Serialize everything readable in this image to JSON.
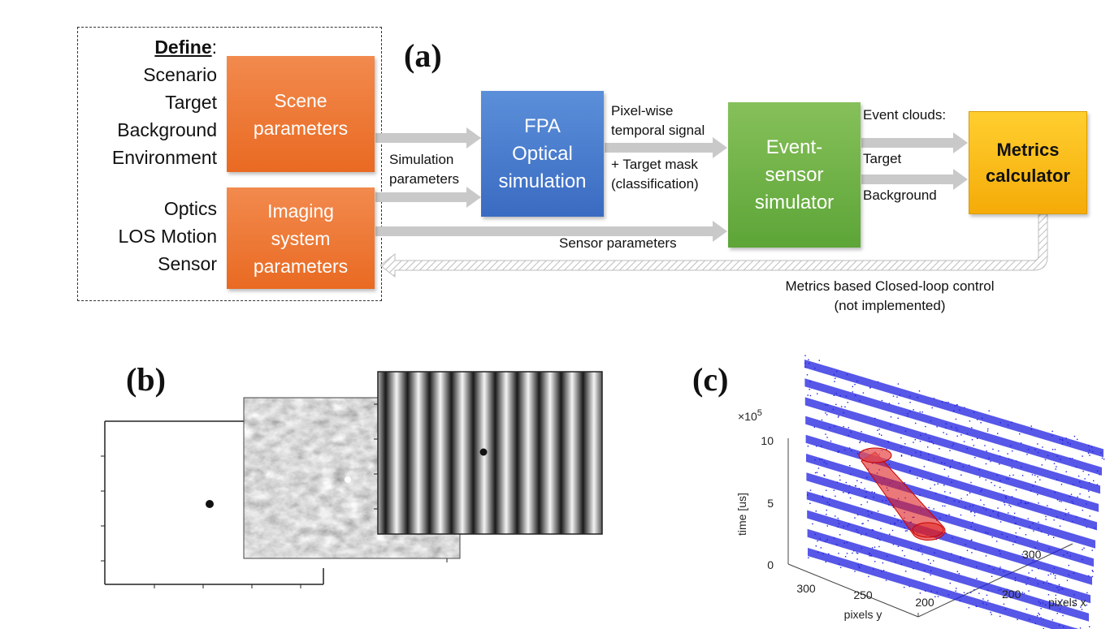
{
  "panel_a": {
    "label": "(a)",
    "define": {
      "title": "Define",
      "colon": ":",
      "scene_items": [
        "Scenario",
        "Target",
        "Background",
        "Environment"
      ],
      "imaging_items": [
        "Optics",
        "LOS Motion",
        "Sensor"
      ]
    },
    "blocks": {
      "scene": "Scene\nparameters",
      "imaging": "Imaging\nsystem\nparameters",
      "fpa": "FPA\nOptical\nsimulation",
      "event_sensor": "Event-\nsensor\nsimulator",
      "metrics": "Metrics\ncalculator"
    },
    "labels": {
      "simulation_parameters": "Simulation\nparameters",
      "pixel_wise": "Pixel-wise\ntemporal signal",
      "target_mask": "+ Target mask\n(classification)",
      "event_clouds": "Event clouds:",
      "target": "Target",
      "background": "Background",
      "sensor_parameters": "Sensor parameters",
      "closed_loop": "Metrics based Closed-loop control\n(not implemented)"
    },
    "colors": {
      "orange": "#ec7430",
      "blue": "#4a7bd0",
      "green": "#70b144",
      "yellow": "#fbbd18",
      "arrow": "#c8c8c8"
    }
  },
  "panel_b": {
    "label": "(b)"
  },
  "panel_c": {
    "label": "(c)",
    "z_multiplier": "×10",
    "z_multiplier_exp": "5",
    "z_label": "time [us]",
    "z_ticks": [
      "10",
      "5",
      "0"
    ],
    "y_label": "pixels y",
    "y_ticks": [
      "300",
      "250",
      "200"
    ],
    "x_label": "pixels x",
    "x_ticks": [
      "300",
      "200"
    ],
    "colors": {
      "events": "#1f1fe0",
      "target": "#e02020"
    }
  }
}
